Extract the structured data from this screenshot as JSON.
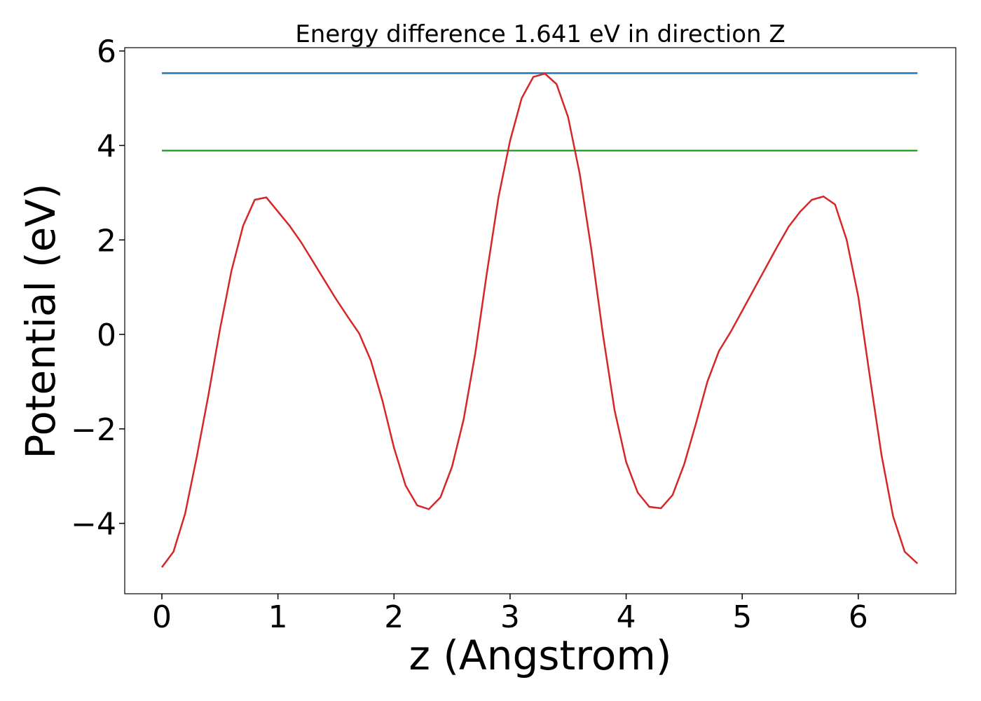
{
  "chart_data": {
    "type": "line",
    "title": "Energy difference 1.641 eV in direction Z",
    "xlabel": "z (Angstrom)",
    "ylabel": "Potential (eV)",
    "xlim": [
      -0.32,
      6.84
    ],
    "ylim": [
      -5.49,
      6.07
    ],
    "xticks": [
      0,
      1,
      2,
      3,
      4,
      5,
      6
    ],
    "yticks": [
      {
        "value": -4,
        "label": "−4"
      },
      {
        "value": -2,
        "label": "−2"
      },
      0,
      2,
      4,
      6
    ],
    "series": [
      {
        "color": "#1f77b4",
        "x": [
          0,
          6.51
        ],
        "values": [
          5.53,
          5.53
        ]
      },
      {
        "color": "#2ca02c",
        "x": [
          0,
          6.51
        ],
        "values": [
          3.89,
          3.89
        ]
      },
      {
        "color": "#d62728",
        "x": [
          0.0,
          0.1,
          0.2,
          0.3,
          0.4,
          0.5,
          0.6,
          0.7,
          0.8,
          0.9,
          1.0,
          1.1,
          1.2,
          1.3,
          1.4,
          1.5,
          1.6,
          1.7,
          1.8,
          1.9,
          2.0,
          2.1,
          2.2,
          2.3,
          2.4,
          2.5,
          2.6,
          2.7,
          2.8,
          2.9,
          3.0,
          3.1,
          3.2,
          3.3,
          3.4,
          3.5,
          3.6,
          3.7,
          3.8,
          3.9,
          4.0,
          4.1,
          4.2,
          4.3,
          4.4,
          4.5,
          4.6,
          4.7,
          4.8,
          4.9,
          5.0,
          5.1,
          5.2,
          5.3,
          5.4,
          5.5,
          5.6,
          5.7,
          5.8,
          5.9,
          6.0,
          6.1,
          6.2,
          6.3,
          6.4,
          6.51
        ],
        "values": [
          -4.93,
          -4.6,
          -3.8,
          -2.6,
          -1.3,
          0.1,
          1.35,
          2.3,
          2.85,
          2.9,
          2.6,
          2.3,
          1.95,
          1.55,
          1.15,
          0.75,
          0.38,
          0.02,
          -0.55,
          -1.4,
          -2.4,
          -3.2,
          -3.62,
          -3.7,
          -3.45,
          -2.8,
          -1.8,
          -0.4,
          1.3,
          2.9,
          4.1,
          5.0,
          5.45,
          5.52,
          5.3,
          4.6,
          3.4,
          1.8,
          0.0,
          -1.6,
          -2.7,
          -3.35,
          -3.65,
          -3.68,
          -3.4,
          -2.75,
          -1.9,
          -1.0,
          -0.35,
          0.05,
          0.5,
          0.95,
          1.4,
          1.85,
          2.28,
          2.6,
          2.85,
          2.92,
          2.75,
          2.0,
          0.8,
          -0.9,
          -2.55,
          -3.85,
          -4.6,
          -4.85
        ]
      }
    ]
  }
}
